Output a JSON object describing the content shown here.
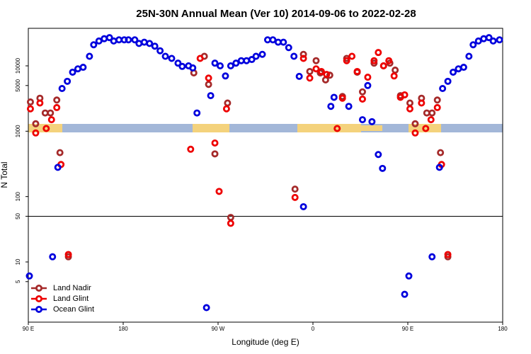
{
  "chart_data": {
    "type": "scatter",
    "title": "25N-30N Annual Mean (Ver 10)   2014-09-06 to 2022-02-28",
    "x_label": "Longitude (deg E)",
    "y_label": "N Total",
    "log_y": true,
    "grid": false,
    "hline": 50,
    "legend": "bottomleft",
    "xlim": [
      90,
      540
    ],
    "ylim": [
      1.2,
      37500
    ],
    "xticks": [
      {
        "value": 90,
        "label": "90 E"
      },
      180,
      {
        "value": 270,
        "label": "90 W"
      },
      {
        "value": 360,
        "label": "0"
      },
      {
        "value": 450,
        "label": "90 E"
      },
      {
        "value": 540,
        "label": "180"
      }
    ],
    "yticks": [
      5,
      10,
      50,
      100,
      1000,
      5000,
      10000
    ],
    "series": [
      {
        "name": "Land Nadir",
        "color": "#a52a2a",
        "x": [
          92,
          97,
          101,
          106,
          111,
          117,
          120,
          128,
          247,
          257,
          261,
          267,
          279,
          282,
          343,
          351,
          357,
          363,
          367,
          372,
          376,
          388,
          392,
          402,
          407,
          418,
          427,
          433,
          438,
          443,
          452,
          457,
          463,
          468,
          473,
          478,
          481,
          488
        ],
        "values": [
          2800,
          1300,
          3200,
          1900,
          1900,
          3000,
          470,
          12,
          7800,
          14000,
          5200,
          450,
          2700,
          48,
          130,
          15000,
          8200,
          12000,
          7800,
          6100,
          7200,
          3400,
          13000,
          8000,
          4000,
          11000,
          10000,
          11000,
          8600,
          3500,
          2700,
          1300,
          3200,
          1900,
          1900,
          3000,
          470,
          12
        ]
      },
      {
        "name": "Land Glint",
        "color": "#ee0000",
        "x": [
          92,
          97,
          101,
          107,
          112,
          117,
          121,
          128,
          244,
          253,
          261,
          267,
          271,
          278,
          282,
          343,
          351,
          357,
          363,
          368,
          373,
          383,
          388,
          392,
          397,
          402,
          407,
          412,
          418,
          422,
          427,
          432,
          437,
          443,
          447,
          452,
          457,
          463,
          467,
          472,
          478,
          482,
          488
        ],
        "values": [
          2200,
          940,
          2700,
          1100,
          1500,
          2300,
          310,
          13,
          530,
          13000,
          6500,
          660,
          120,
          2200,
          39,
          97,
          13000,
          6500,
          9000,
          8200,
          7400,
          1100,
          3200,
          12000,
          14000,
          8200,
          3100,
          6700,
          12000,
          16000,
          10000,
          12000,
          7000,
          3300,
          3600,
          2200,
          940,
          2700,
          1100,
          1500,
          2300,
          310,
          13
        ]
      },
      {
        "name": "Ocean Glint",
        "color": "#0000dd",
        "x": [
          91,
          113,
          118,
          122,
          127,
          132,
          137,
          142,
          148,
          152,
          157,
          162,
          167,
          171,
          176,
          181,
          185,
          191,
          195,
          200,
          205,
          210,
          215,
          220,
          226,
          232,
          236,
          242,
          246,
          250,
          259,
          263,
          267,
          272,
          277,
          282,
          287,
          292,
          297,
          302,
          306,
          312,
          317,
          322,
          327,
          332,
          337,
          342,
          347,
          351,
          377,
          380,
          394,
          407,
          412,
          416,
          422,
          426,
          447,
          451,
          473,
          480,
          483,
          488,
          493,
          498,
          503,
          508,
          512,
          517,
          522,
          527,
          531,
          537
        ],
        "values": [
          6.1,
          12,
          280,
          4500,
          5800,
          8000,
          9000,
          9500,
          14000,
          21000,
          24000,
          26000,
          27000,
          24000,
          25000,
          25000,
          25000,
          25000,
          22000,
          23000,
          22000,
          20000,
          17000,
          14000,
          13000,
          11000,
          9800,
          10000,
          9300,
          1900,
          2.0,
          3500,
          11000,
          10000,
          7000,
          10000,
          11000,
          12000,
          12000,
          12500,
          14000,
          15000,
          25000,
          25000,
          23000,
          23000,
          19000,
          14000,
          6900,
          70,
          2400,
          3300,
          2400,
          1500,
          5000,
          1400,
          440,
          270,
          3.2,
          6.1,
          12,
          280,
          4500,
          5800,
          8000,
          9000,
          9500,
          14000,
          21000,
          24000,
          26000,
          27000,
          24000,
          25000
        ]
      }
    ]
  }
}
